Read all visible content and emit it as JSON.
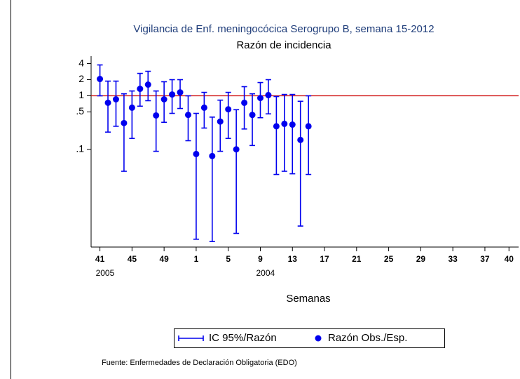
{
  "chart_data": {
    "type": "errorbar",
    "title": "Vigilancia de Enf. meningocócica Serogrupo B, semana 15-2012",
    "subtitle": "Razón de incidencia",
    "x_label": "Semanas",
    "note": "Fuente: Enfermedades de Declaración Obligatoria (EDO)",
    "y_scale": "log",
    "xlim": [
      -1.1,
      52.2
    ],
    "ylim": [
      0.0015,
      5.5
    ],
    "yticks": [
      4,
      2,
      1,
      {
        "value": 0.5,
        "label": ".5"
      },
      {
        "value": 0.1,
        "label": ".1"
      }
    ],
    "xticks": [
      {
        "value": 0,
        "label": "41",
        "sublabel": "2005"
      },
      {
        "value": 4,
        "label": "45"
      },
      {
        "value": 8,
        "label": "49"
      },
      {
        "value": 12,
        "label": "1"
      },
      {
        "value": 16,
        "label": "5"
      },
      {
        "value": 20,
        "label": "9",
        "sublabel": "2004"
      },
      {
        "value": 24,
        "label": "13"
      },
      {
        "value": 28,
        "label": "17"
      },
      {
        "value": 32,
        "label": "21"
      },
      {
        "value": 36,
        "label": "25"
      },
      {
        "value": 40,
        "label": "29"
      },
      {
        "value": 44,
        "label": "33"
      },
      {
        "value": 48,
        "label": "37"
      },
      {
        "value": 51,
        "label": "40"
      }
    ],
    "reference_line": {
      "value": 1,
      "color": "#cc0000"
    },
    "x": [
      0,
      1,
      2,
      3,
      4,
      5,
      6,
      7,
      8,
      9,
      10,
      11,
      12,
      13,
      14,
      15,
      16,
      17,
      18,
      19,
      20,
      21,
      22,
      23,
      24,
      25,
      26
    ],
    "series": [
      {
        "name": "IC 95%/Razón",
        "color": "#0000ee",
        "lower": [
          1.0,
          0.21,
          0.27,
          0.039,
          0.16,
          0.64,
          0.81,
          0.092,
          0.32,
          0.47,
          0.58,
          0.145,
          0.0021,
          0.25,
          0.0019,
          0.092,
          0.16,
          0.0027,
          0.24,
          0.118,
          0.39,
          0.46,
          0.034,
          0.039,
          0.035,
          0.0037,
          0.034
        ],
        "upper": [
          3.77,
          1.88,
          1.88,
          1.09,
          1.23,
          2.62,
          2.87,
          1.23,
          1.83,
          2.0,
          2.0,
          1.0,
          0.47,
          1.16,
          0.4,
          0.83,
          1.16,
          0.55,
          1.48,
          1.09,
          1.77,
          2.0,
          0.97,
          1.06,
          1.06,
          0.79,
          1.0
        ]
      },
      {
        "name": "Razón Obs./Esp.",
        "color": "#0000ee",
        "values": [
          2.06,
          0.74,
          0.86,
          0.31,
          0.6,
          1.35,
          1.62,
          0.43,
          0.86,
          1.06,
          1.16,
          0.44,
          0.082,
          0.6,
          0.075,
          0.33,
          0.56,
          0.1,
          0.74,
          0.44,
          0.91,
          1.03,
          0.27,
          0.3,
          0.29,
          0.15,
          0.27
        ]
      }
    ]
  }
}
